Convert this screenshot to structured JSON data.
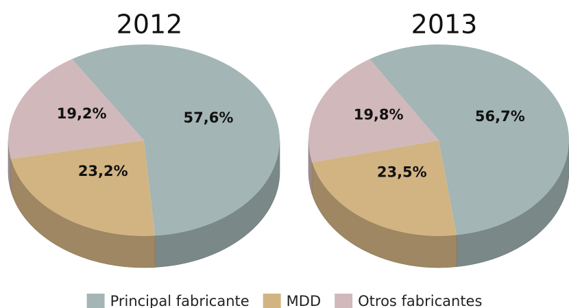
{
  "chart_data": [
    {
      "type": "pie",
      "title": "2012",
      "categories": [
        "Principal fabricante",
        "MDD",
        "Otros fabricantes"
      ],
      "values": [
        57.6,
        23.2,
        19.2
      ],
      "value_labels": [
        "57,6%",
        "23,2%",
        "19,2%"
      ],
      "colors": [
        "#a3b5b5",
        "#d2b483",
        "#d0b8bb"
      ],
      "legend": "bottom"
    },
    {
      "type": "pie",
      "title": "2013",
      "categories": [
        "Principal fabricante",
        "MDD",
        "Otros fabricantes"
      ],
      "values": [
        56.7,
        23.5,
        19.8
      ],
      "value_labels": [
        "56,7%",
        "23,5%",
        "19,8%"
      ],
      "colors": [
        "#a3b5b5",
        "#d2b483",
        "#d0b8bb"
      ],
      "legend": "bottom"
    }
  ]
}
